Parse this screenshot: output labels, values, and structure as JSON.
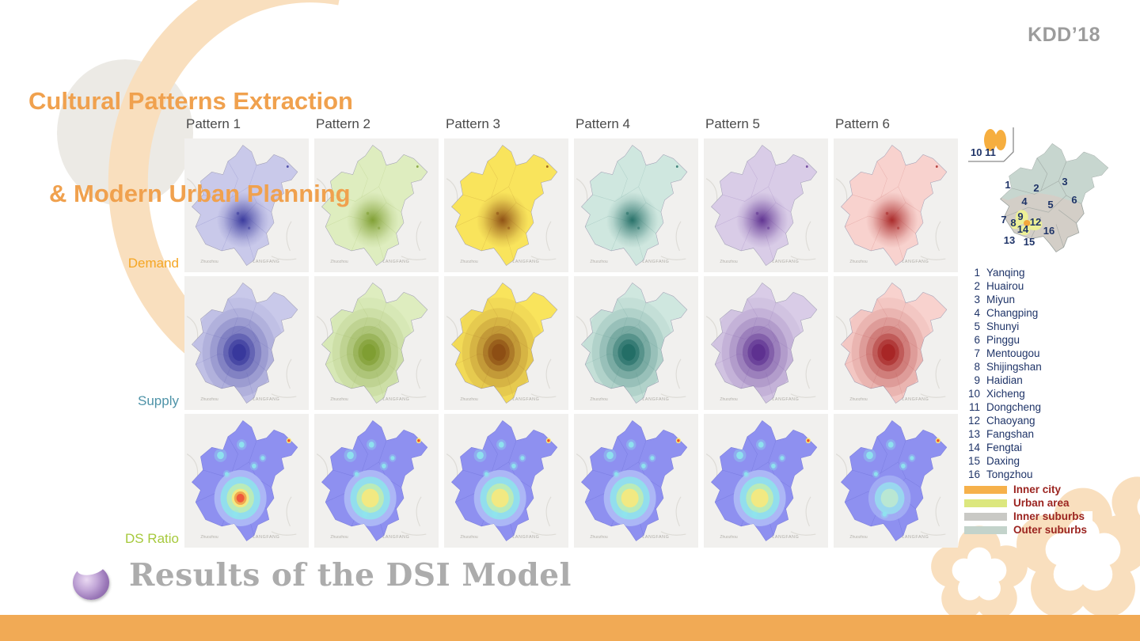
{
  "slide": {
    "title_line1": "Cultural Patterns Extraction",
    "title_line2": "& Modern Urban Planning",
    "conference": "KDD’18",
    "footer_heading": "Results of the DSI Model"
  },
  "grid": {
    "patterns": [
      {
        "label": "Pattern 1",
        "base": "#C9C9EA",
        "dark": "#34349A",
        "ds_core": 3
      },
      {
        "label": "Pattern 2",
        "base": "#DEEDBF",
        "dark": "#7C9C2E",
        "ds_core": 2
      },
      {
        "label": "Pattern 3",
        "base": "#F9E45C",
        "dark": "#8A4A12",
        "ds_core": 2
      },
      {
        "label": "Pattern 4",
        "base": "#CFE7DF",
        "dark": "#1F6B63",
        "ds_core": 2
      },
      {
        "label": "Pattern 5",
        "base": "#D9CCE7",
        "dark": "#5B2D8E",
        "ds_core": 2
      },
      {
        "label": "Pattern 6",
        "base": "#F8D2CE",
        "dark": "#A62222",
        "ds_core": 1
      }
    ],
    "rows": [
      {
        "label": "Demand",
        "color": "#F5A623",
        "type": "demand"
      },
      {
        "label": "Supply",
        "color": "#4E93A8",
        "type": "supply"
      },
      {
        "label": "DS Ratio",
        "color": "#A6C93C",
        "type": "ds"
      }
    ],
    "ds_base_color": "#8E90F0",
    "map_tile_labels": {
      "southwest": "Zhuozhou",
      "south": "LANGFANG"
    }
  },
  "legend": {
    "inset_numbers": "10 11",
    "districts": [
      {
        "num": "1",
        "name": "Yanqing"
      },
      {
        "num": "2",
        "name": "Huairou"
      },
      {
        "num": "3",
        "name": "Miyun"
      },
      {
        "num": "4",
        "name": "Changping"
      },
      {
        "num": "5",
        "name": "Shunyi"
      },
      {
        "num": "6",
        "name": "Pinggu"
      },
      {
        "num": "7",
        "name": "Mentougou"
      },
      {
        "num": "8",
        "name": "Shijingshan"
      },
      {
        "num": "9",
        "name": "Haidian"
      },
      {
        "num": "10",
        "name": "Xicheng"
      },
      {
        "num": "11",
        "name": "Dongcheng"
      },
      {
        "num": "12",
        "name": "Chaoyang"
      },
      {
        "num": "13",
        "name": "Fangshan"
      },
      {
        "num": "14",
        "name": "Fengtai"
      },
      {
        "num": "15",
        "name": "Daxing"
      },
      {
        "num": "16",
        "name": "Tongzhou"
      }
    ],
    "categories": [
      {
        "label": "Inner city",
        "color": "#F6B14B"
      },
      {
        "label": "Urban area",
        "color": "#DCE77E"
      },
      {
        "label": "Inner suburbs",
        "color": "#C9C9C5"
      },
      {
        "label": "Outer suburbs",
        "color": "#C3D3CB"
      }
    ],
    "district_text_color": "#1F3468",
    "category_text_color": "#9B2420"
  }
}
